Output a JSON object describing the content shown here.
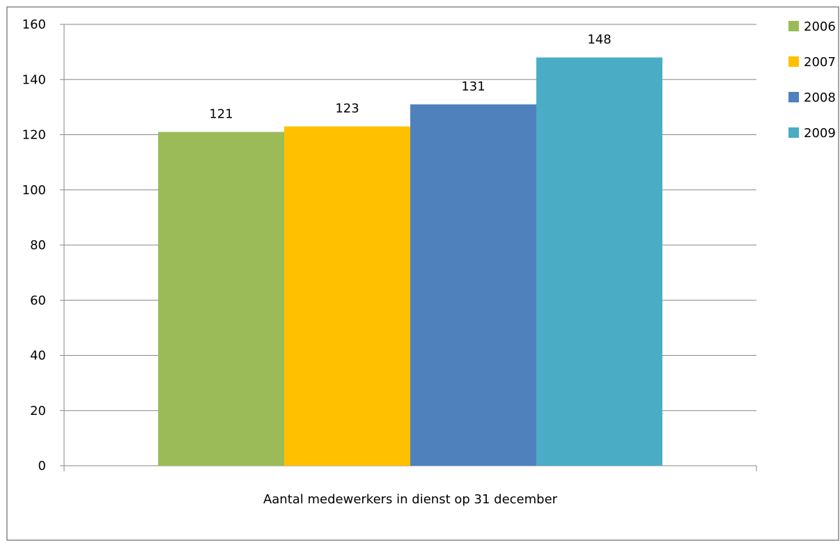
{
  "chart_data": {
    "type": "bar",
    "categories": [
      "Aantal medewerkers in dienst op 31 december"
    ],
    "series": [
      {
        "name": "2006",
        "values": [
          121
        ],
        "color": "#9BBB59"
      },
      {
        "name": "2007",
        "values": [
          123
        ],
        "color": "#FFC000"
      },
      {
        "name": "2008",
        "values": [
          131
        ],
        "color": "#4F81BD"
      },
      {
        "name": "2009",
        "values": [
          148
        ],
        "color": "#4BACC6"
      }
    ],
    "title": "",
    "xlabel": "",
    "ylabel": "",
    "ylim": [
      0,
      160
    ],
    "yticks": [
      "0",
      "20",
      "40",
      "60",
      "80",
      "100",
      "120",
      "140",
      "160"
    ],
    "data_labels": [
      "121",
      "123",
      "131",
      "148"
    ],
    "grid": true,
    "legend": "right"
  }
}
